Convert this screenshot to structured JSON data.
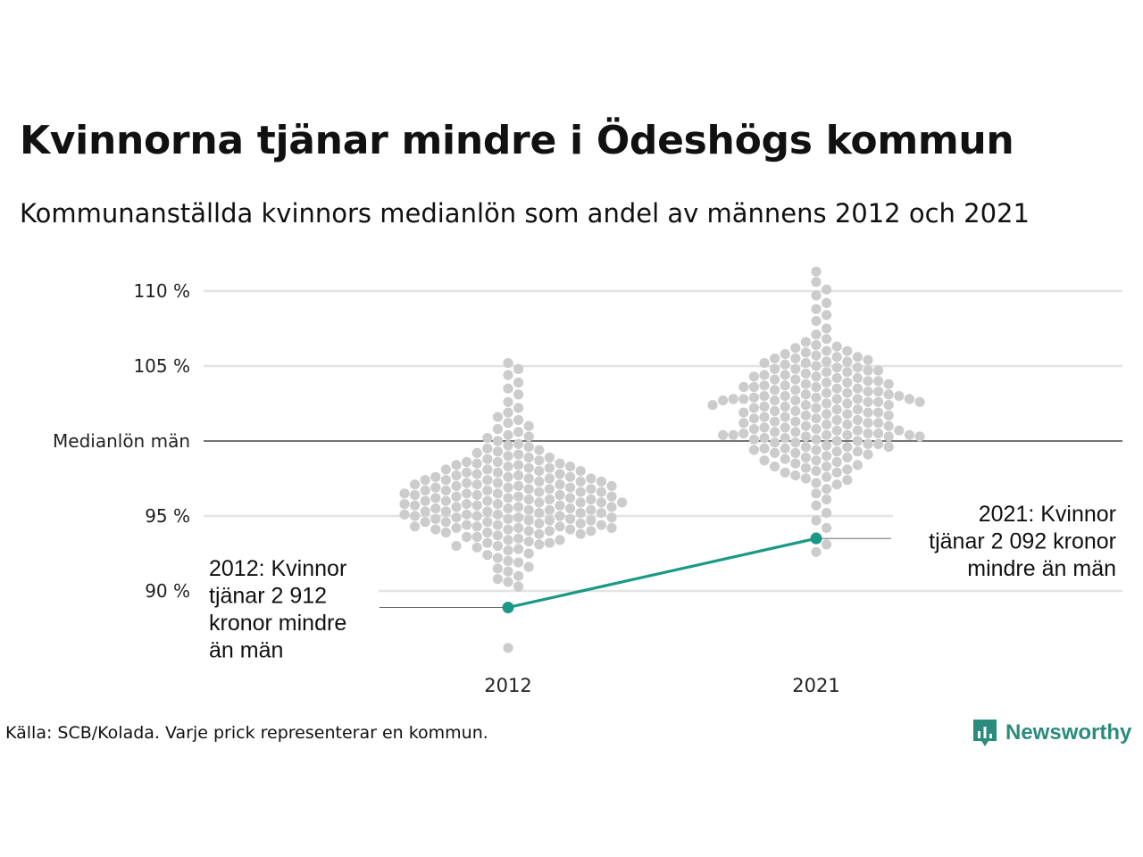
{
  "header": {
    "title": "Kvinnorna tjänar mindre i Ödeshögs kommun",
    "subtitle": "Kommunanställda kvinnors medianlön som andel av männens 2012 och 2021"
  },
  "footer": {
    "source": "Källa: SCB/Kolada. Varje prick representerar en kommun.",
    "brand": "Newsworthy"
  },
  "colors": {
    "dots": "#cccccc",
    "highlight": "#1a9a86",
    "grid": "#e3e3e3",
    "reference_line": "#222222",
    "brand": "#2a8c7c"
  },
  "chart_data": {
    "type": "scatter",
    "subtype": "beeswarm",
    "categories": [
      "2012",
      "2021"
    ],
    "y_ticks": [
      {
        "value": 90,
        "label": "90 %"
      },
      {
        "value": 95,
        "label": "95 %"
      },
      {
        "value": 100,
        "label": "Medianlön män"
      },
      {
        "value": 105,
        "label": "105 %"
      },
      {
        "value": 110,
        "label": "110 %"
      }
    ],
    "ylim": [
      85,
      111
    ],
    "reference_line": {
      "value": 100,
      "label": "Medianlön män"
    },
    "highlight": {
      "name": "Ödeshögs kommun",
      "values": [
        88.9,
        93.5
      ]
    },
    "annotations": [
      {
        "category": "2012",
        "lines": [
          "2012: Kvinnor",
          "tjänar 2 912",
          "kronor mindre",
          "än män"
        ]
      },
      {
        "category": "2021",
        "lines": [
          "2021: Kvinnor",
          "tjänar 2 092 kronor",
          "mindre än män"
        ]
      }
    ],
    "distributions": [
      {
        "category": "2012",
        "values": [
          86.2,
          90.3,
          90.6,
          91.0,
          91.3,
          91.6,
          91.9,
          92.2,
          92.5,
          92.8,
          93.0,
          93.2,
          93.4,
          93.6,
          93.8,
          94.0,
          94.1,
          94.2,
          94.3,
          94.4,
          94.5,
          94.6,
          94.7,
          94.8,
          94.9,
          95.0,
          95.1,
          95.2,
          95.3,
          95.4,
          95.5,
          95.6,
          95.7,
          95.8,
          95.9,
          96.0,
          96.1,
          96.2,
          96.3,
          96.4,
          96.5,
          96.6,
          96.7,
          96.8,
          96.9,
          97.0,
          97.1,
          97.2,
          97.3,
          97.4,
          97.5,
          97.6,
          97.7,
          97.8,
          97.9,
          98.0,
          98.1,
          98.2,
          98.3,
          98.4,
          98.5,
          98.6,
          98.7,
          98.8,
          98.9,
          99.0,
          99.1,
          99.2,
          99.4,
          99.6,
          99.8,
          100.0,
          100.2,
          100.4,
          100.6,
          100.8,
          101.0,
          101.2,
          101.4,
          101.6,
          101.9,
          102.2,
          102.6,
          103.1,
          103.5,
          103.9,
          104.4,
          104.8,
          105.2,
          93.4,
          93.7,
          94.1,
          94.4,
          94.7,
          95.0,
          95.3,
          95.6,
          95.9,
          96.2,
          96.5,
          96.8,
          97.1,
          97.4,
          97.7,
          98.0,
          98.3,
          98.6,
          94.0,
          94.6,
          95.2,
          95.8,
          96.4,
          97.0,
          97.6,
          98.2,
          94.3,
          95.1,
          95.9,
          96.7,
          97.5,
          94.9,
          96.1,
          96.9,
          95.5,
          96.3,
          97.3,
          93.1,
          92.7,
          92.4,
          93.9,
          94.5,
          95.7,
          96.6,
          97.8,
          98.4,
          99.3,
          99.7,
          92.0,
          91.5,
          90.8,
          93.3,
          94.2,
          95.4,
          96.0,
          97.2,
          98.5,
          99.5,
          100.3,
          94.8,
          95.6,
          96.3,
          95.1,
          96.8,
          94.4,
          97.4,
          93.8,
          96.0,
          95.3,
          94.1,
          97.9,
          93.5,
          96.6,
          95.9,
          94.7,
          98.1,
          93.0,
          97.0,
          95.2,
          96.4,
          94.9,
          97.6,
          93.6,
          96.2,
          95.0,
          98.9,
          92.9,
          97.3,
          94.3,
          96.9,
          95.7,
          93.2,
          97.1,
          94.6,
          96.5,
          95.4,
          94.0,
          96.7,
          95.8,
          94.2,
          97.5,
          93.9,
          96.1,
          95.5,
          94.8
        ]
      },
      {
        "category": "2021",
        "values": [
          92.6,
          93.1,
          93.6,
          94.2,
          94.7,
          95.2,
          95.7,
          96.1,
          96.5,
          96.8,
          97.1,
          97.4,
          97.7,
          97.9,
          98.1,
          98.3,
          98.5,
          98.7,
          98.9,
          99.1,
          99.2,
          99.3,
          99.4,
          99.5,
          99.6,
          99.7,
          99.8,
          99.9,
          100.0,
          100.1,
          100.2,
          100.3,
          100.4,
          100.5,
          100.6,
          100.7,
          100.8,
          100.9,
          101.0,
          101.1,
          101.2,
          101.3,
          101.4,
          101.5,
          101.6,
          101.7,
          101.8,
          101.9,
          102.0,
          102.1,
          102.2,
          102.3,
          102.4,
          102.5,
          102.6,
          102.7,
          102.8,
          102.9,
          103.0,
          103.1,
          103.2,
          103.3,
          103.4,
          103.5,
          103.6,
          103.7,
          103.8,
          103.9,
          104.0,
          104.1,
          104.2,
          104.3,
          104.4,
          104.5,
          104.6,
          104.7,
          104.8,
          104.9,
          105.0,
          105.1,
          105.2,
          105.3,
          105.4,
          105.5,
          105.6,
          105.7,
          105.8,
          105.9,
          106.0,
          106.2,
          106.4,
          106.6,
          106.8,
          107.1,
          107.5,
          108.0,
          108.4,
          108.8,
          109.2,
          109.7,
          110.1,
          110.6,
          111.3,
          97.2,
          97.6,
          98.0,
          98.4,
          98.8,
          99.2,
          99.6,
          100.0,
          100.4,
          100.8,
          101.2,
          101.6,
          102.0,
          102.4,
          102.8,
          103.2,
          103.6,
          104.0,
          104.4,
          104.8,
          105.2,
          105.6,
          106.0,
          98.2,
          98.9,
          99.5,
          100.1,
          100.7,
          101.3,
          101.9,
          102.5,
          103.1,
          103.7,
          104.3,
          104.9,
          105.5,
          99.0,
          99.8,
          100.6,
          101.4,
          102.2,
          103.0,
          103.8,
          104.6,
          100.3,
          101.1,
          101.9,
          102.7,
          103.5,
          100.4,
          102.8,
          100.5,
          102.9,
          100.4,
          102.8,
          100.3,
          102.7,
          100.5,
          102.6,
          100.4,
          102.8,
          101.5,
          103.4,
          99.4,
          102.1,
          104.2,
          98.6,
          101.7,
          103.9,
          99.9,
          102.3,
          105.3,
          97.9,
          100.9,
          103.3,
          98.7,
          101.0,
          104.7,
          99.3,
          102.4,
          97.5,
          100.2,
          103.6,
          106.3,
          98.3,
          101.8,
          99.6,
          102.6,
          104.1,
          101.2,
          103.0,
          100.7
        ]
      }
    ]
  }
}
